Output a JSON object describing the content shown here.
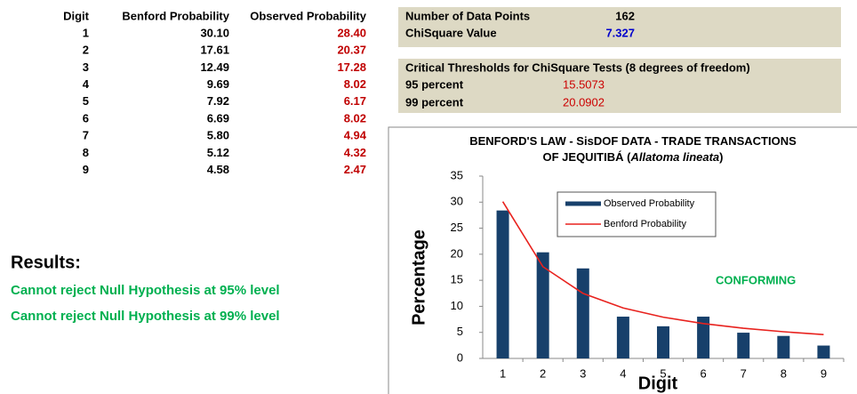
{
  "table": {
    "header": [
      "Digit",
      "Benford Probability",
      "Observed Probability"
    ],
    "rows": [
      [
        "1",
        "30.10",
        "28.40"
      ],
      [
        "2",
        "17.61",
        "20.37"
      ],
      [
        "3",
        "12.49",
        "17.28"
      ],
      [
        "4",
        "9.69",
        "8.02"
      ],
      [
        "5",
        "7.92",
        "6.17"
      ],
      [
        "6",
        "6.69",
        "8.02"
      ],
      [
        "7",
        "5.80",
        "4.94"
      ],
      [
        "8",
        "5.12",
        "4.32"
      ],
      [
        "9",
        "4.58",
        "2.47"
      ]
    ]
  },
  "stats": {
    "data_points_label": "Number of Data Points",
    "data_points": "162",
    "chisquare_label": "ChiSquare Value",
    "chisquare": "7.327",
    "thresholds_title": "Critical Thresholds for ChiSquare Tests (8 degrees of freedom)",
    "thresholds": [
      [
        "95 percent",
        "15.5073"
      ],
      [
        "99 percent",
        "20.0902"
      ]
    ]
  },
  "results": {
    "title": "Results:",
    "lines": [
      "Cannot reject Null Hypothesis at 95% level",
      "Cannot reject Null Hypothesis at 99% level"
    ]
  },
  "chart_data": {
    "type": "bar",
    "title": [
      "BENFORD'S LAW - SisDOF DATA - TRADE TRANSACTIONS",
      "OF JEQUITIBÁ (",
      "Allatoma lineata",
      ")"
    ],
    "xlabel": "Digit",
    "ylabel": "Percentage",
    "annotation": "CONFORMING",
    "legend": "top",
    "categories": [
      "1",
      "2",
      "3",
      "4",
      "5",
      "6",
      "7",
      "8",
      "9"
    ],
    "series": [
      {
        "name": "Observed Probability",
        "type": "bar",
        "color": "#17406b",
        "values": [
          28.4,
          20.37,
          17.28,
          8.02,
          6.17,
          8.02,
          4.94,
          4.32,
          2.47
        ]
      },
      {
        "name": "Benford Probability",
        "type": "line",
        "color": "#e8221e",
        "values": [
          30.1,
          17.61,
          12.49,
          9.69,
          7.92,
          6.69,
          5.8,
          5.12,
          4.58
        ]
      }
    ],
    "ylim": [
      0,
      35
    ],
    "yticks": [
      0,
      5,
      10,
      15,
      20,
      25,
      30,
      35
    ]
  }
}
